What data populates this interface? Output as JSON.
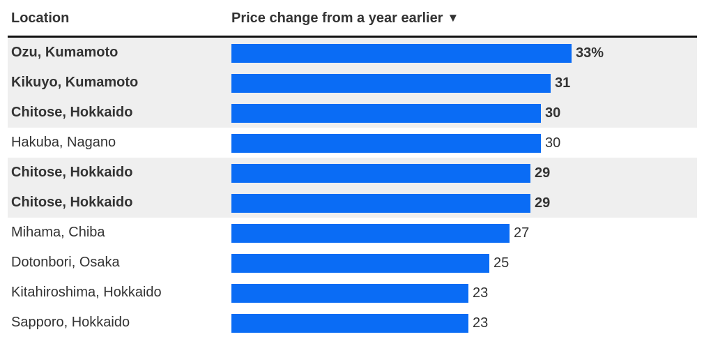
{
  "table": {
    "location_header": "Location",
    "price_header": "Price change from a year earlier",
    "sort_icon": "▼",
    "percent_suffix": "%"
  },
  "colors": {
    "bar": "#0a6cf5",
    "highlight_row": "#efefef",
    "rule": "#111111"
  },
  "chart_data": {
    "type": "bar",
    "orientation": "horizontal",
    "xlabel": "Price change from a year earlier",
    "ylabel": "Location",
    "xlim": [
      0,
      33
    ],
    "categories": [
      "Ozu, Kumamoto",
      "Kikuyo, Kumamoto",
      "Chitose, Hokkaido",
      "Hakuba, Nagano",
      "Chitose, Hokkaido",
      "Chitose, Hokkaido",
      "Mihama, Chiba",
      "Dotonbori, Osaka",
      "Kitahiroshima, Hokkaido",
      "Sapporo, Hokkaido"
    ],
    "values": [
      33,
      31,
      30,
      30,
      29,
      29,
      27,
      25,
      23,
      23
    ],
    "value_labels": [
      "33%",
      "31",
      "30",
      "30",
      "29",
      "29",
      "27",
      "25",
      "23",
      "23"
    ],
    "highlighted": [
      true,
      true,
      true,
      false,
      true,
      true,
      false,
      false,
      false,
      false
    ]
  }
}
